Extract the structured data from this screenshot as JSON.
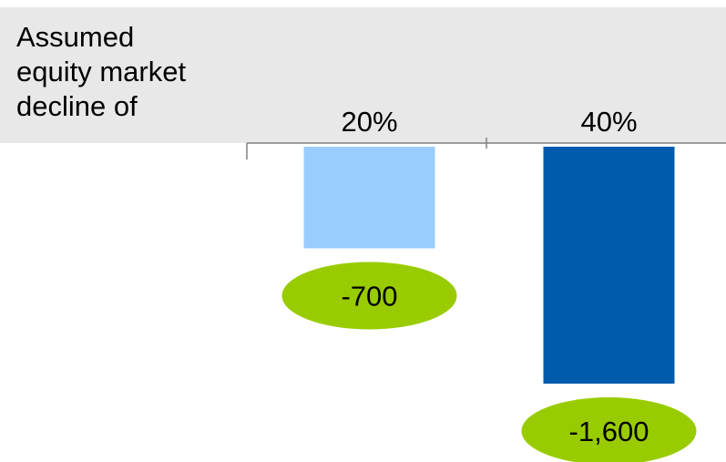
{
  "header": {
    "lines": [
      "Assumed",
      "equity market",
      "decline of"
    ]
  },
  "chart_data": {
    "type": "bar",
    "categories": [
      "20%",
      "40%"
    ],
    "values": [
      -700,
      -1600
    ],
    "data_labels": [
      "-700",
      "-1,600"
    ],
    "ylim": [
      -1600,
      0
    ],
    "grid": false,
    "colors": {
      "bars": [
        "#99ccff",
        "#005bac"
      ],
      "label_bubble": "#99cc00",
      "header_band": "#e8e8e8"
    }
  }
}
